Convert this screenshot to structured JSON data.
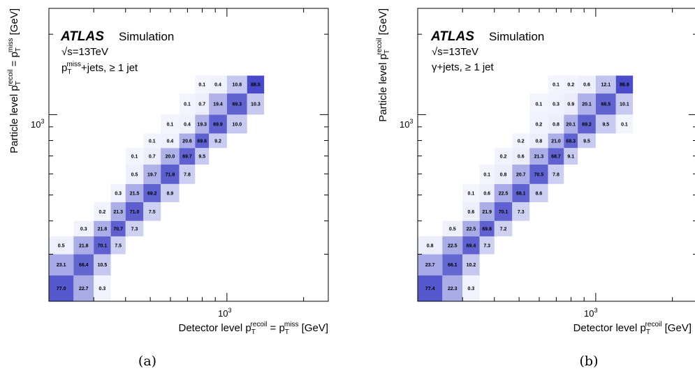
{
  "chart_data": [
    {
      "type": "heatmap",
      "caption": "(a)",
      "atlas_label": "ATLAS",
      "simulation_label": "Simulation",
      "energy_label": "√s=13TeV",
      "process_label": "p_T^miss+jets, ≥ 1 jet",
      "xlabel": "Detector level p_T^recoil = p_T^miss [GeV]",
      "ylabel": "Particle level p_T^recoil = p_T^miss [GeV]",
      "x_tick_label": "10^3",
      "y_tick_label": "10^3",
      "bin_edges": [
        200,
        250,
        300,
        350,
        400,
        470,
        550,
        650,
        750,
        850,
        1000,
        1200,
        1400,
        2500
      ],
      "rows": [
        [
          [
            0,
            "77.0"
          ],
          [
            1,
            "22.7"
          ],
          [
            2,
            "0.3"
          ]
        ],
        [
          [
            0,
            "23.1"
          ],
          [
            1,
            "66.4"
          ],
          [
            2,
            "10.5"
          ]
        ],
        [
          [
            0,
            "0.5"
          ],
          [
            1,
            "21.8"
          ],
          [
            2,
            "70.1"
          ],
          [
            3,
            "7.5"
          ]
        ],
        [
          [
            1,
            "0.3"
          ],
          [
            2,
            "21.8"
          ],
          [
            3,
            "70.7"
          ],
          [
            4,
            "7.3"
          ]
        ],
        [
          [
            2,
            "0.2"
          ],
          [
            3,
            "21.3"
          ],
          [
            4,
            "71.0"
          ],
          [
            5,
            "7.5"
          ]
        ],
        [
          [
            3,
            "0.3"
          ],
          [
            4,
            "21.5"
          ],
          [
            5,
            "69.2"
          ],
          [
            6,
            "8.9"
          ]
        ],
        [
          [
            4,
            "0.5"
          ],
          [
            5,
            "19.7"
          ],
          [
            6,
            "71.8"
          ],
          [
            7,
            "7.8"
          ]
        ],
        [
          [
            4,
            "0.1"
          ],
          [
            5,
            "0.7"
          ],
          [
            6,
            "20.0"
          ],
          [
            7,
            "69.7"
          ],
          [
            8,
            "9.5"
          ]
        ],
        [
          [
            5,
            "0.1"
          ],
          [
            6,
            "0.4"
          ],
          [
            7,
            "20.6"
          ],
          [
            8,
            "69.6"
          ],
          [
            9,
            "9.2"
          ]
        ],
        [
          [
            6,
            "0.1"
          ],
          [
            7,
            "0.4"
          ],
          [
            8,
            "19.3"
          ],
          [
            9,
            "69.9"
          ],
          [
            10,
            "10.0"
          ]
        ],
        [
          [
            7,
            "0.1"
          ],
          [
            8,
            "0.7"
          ],
          [
            9,
            "19.4"
          ],
          [
            10,
            "69.3"
          ],
          [
            11,
            "10.3"
          ]
        ],
        [
          [
            8,
            "0.1"
          ],
          [
            9,
            "0.4"
          ],
          [
            10,
            "10.8"
          ],
          [
            11,
            "88.5"
          ]
        ]
      ]
    },
    {
      "type": "heatmap",
      "caption": "(b)",
      "atlas_label": "ATLAS",
      "simulation_label": "Simulation",
      "energy_label": "√s=13TeV",
      "process_label": "γ+jets, ≥ 1 jet",
      "xlabel": "Detector level p_T^recoil [GeV]",
      "ylabel": "Particle level p_T^recoil [GeV]",
      "x_tick_label": "10^3",
      "y_tick_label": "10^3",
      "bin_edges": [
        200,
        250,
        300,
        350,
        400,
        470,
        550,
        650,
        750,
        850,
        1000,
        1200,
        1400,
        2500
      ],
      "rows": [
        [
          [
            0,
            "77.4"
          ],
          [
            1,
            "22.3"
          ],
          [
            2,
            "0.3"
          ]
        ],
        [
          [
            0,
            "23.7"
          ],
          [
            1,
            "66.1"
          ],
          [
            2,
            "10.2"
          ]
        ],
        [
          [
            0,
            "0.8"
          ],
          [
            1,
            "22.5"
          ],
          [
            2,
            "69.4"
          ],
          [
            3,
            "7.3"
          ]
        ],
        [
          [
            1,
            "0.5"
          ],
          [
            2,
            "22.5"
          ],
          [
            3,
            "69.8"
          ],
          [
            4,
            "7.2"
          ]
        ],
        [
          [
            2,
            "0.6"
          ],
          [
            3,
            "21.9"
          ],
          [
            4,
            "70.1"
          ],
          [
            5,
            "7.3"
          ]
        ],
        [
          [
            2,
            "0.1"
          ],
          [
            3,
            "0.6"
          ],
          [
            4,
            "22.5"
          ],
          [
            5,
            "68.1"
          ],
          [
            6,
            "8.6"
          ]
        ],
        [
          [
            3,
            "0.1"
          ],
          [
            4,
            "0.8"
          ],
          [
            5,
            "20.7"
          ],
          [
            6,
            "70.5"
          ],
          [
            7,
            "7.8"
          ]
        ],
        [
          [
            4,
            "0.2"
          ],
          [
            5,
            "0.6"
          ],
          [
            6,
            "21.3"
          ],
          [
            7,
            "68.7"
          ],
          [
            8,
            "9.1"
          ]
        ],
        [
          [
            5,
            "0.2"
          ],
          [
            6,
            "0.8"
          ],
          [
            7,
            "21.0"
          ],
          [
            8,
            "68.3"
          ],
          [
            9,
            "9.5"
          ]
        ],
        [
          [
            6,
            "0.2"
          ],
          [
            7,
            "0.8"
          ],
          [
            8,
            "20.1"
          ],
          [
            9,
            "69.2"
          ],
          [
            10,
            "9.5"
          ],
          [
            11,
            "0.1"
          ]
        ],
        [
          [
            6,
            "0.1"
          ],
          [
            7,
            "0.3"
          ],
          [
            8,
            "0.9"
          ],
          [
            9,
            "20.1"
          ],
          [
            10,
            "68.5"
          ],
          [
            11,
            "10.1"
          ]
        ],
        [
          [
            7,
            "0.1"
          ],
          [
            8,
            "0.2"
          ],
          [
            9,
            "0.6"
          ],
          [
            10,
            "12.1"
          ],
          [
            11,
            "86.9"
          ]
        ]
      ]
    }
  ]
}
